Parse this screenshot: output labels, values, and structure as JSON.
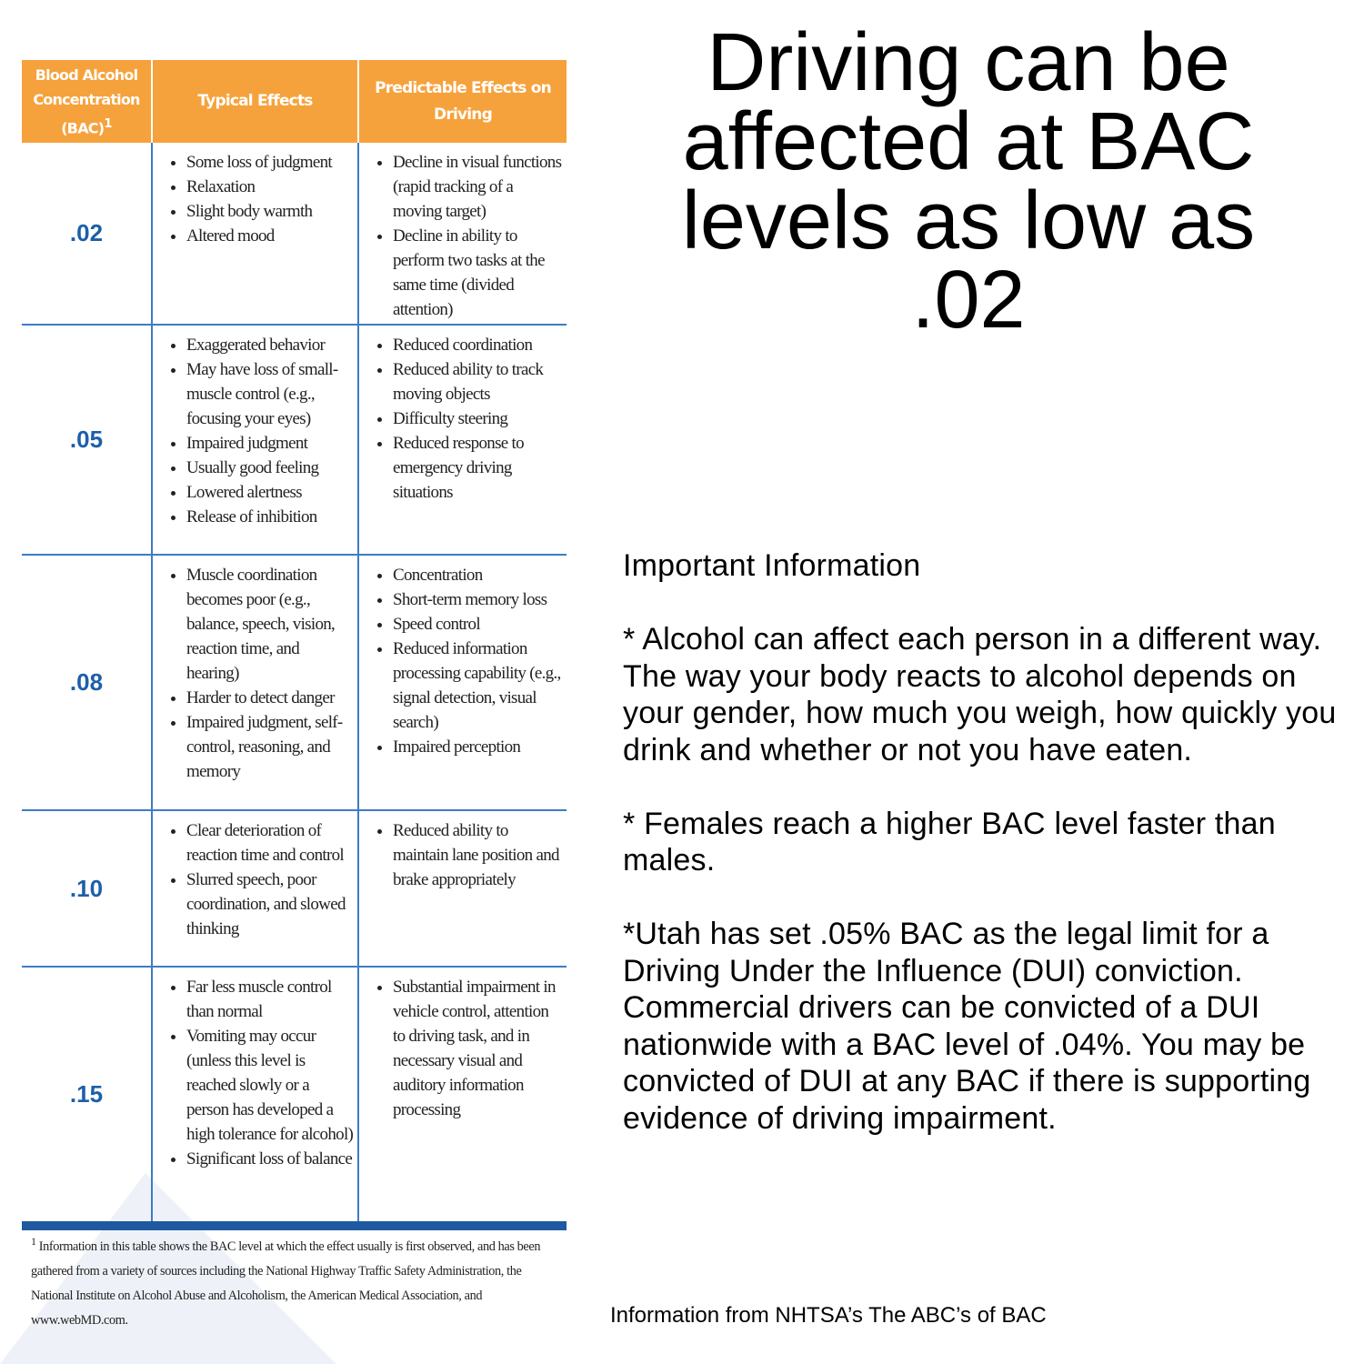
{
  "table": {
    "header": {
      "bac": "Blood Alcohol Concentration (BAC)",
      "bac_note_mark": "1",
      "typical": "Typical Effects",
      "driving": "Predictable Effects on Driving"
    },
    "rows": [
      {
        "bac": ".02",
        "typical": [
          "Some loss of judgment",
          "Relaxation",
          "Slight body warmth",
          "Altered mood"
        ],
        "driving": [
          "Decline in visual functions (rapid tracking of a moving target)",
          "Decline in ability to perform two tasks at the same time (divided attention)"
        ]
      },
      {
        "bac": ".05",
        "typical": [
          "Exaggerated behavior",
          "May have loss of small-muscle control (e.g., focusing your eyes)",
          "Impaired judgment",
          "Usually good feeling",
          "Lowered alertness",
          "Release of inhibition"
        ],
        "driving": [
          "Reduced coordination",
          "Reduced ability to track moving objects",
          "Difficulty steering",
          "Reduced response to emergency driving situations"
        ]
      },
      {
        "bac": ".08",
        "typical": [
          "Muscle coordination becomes poor (e.g., balance, speech, vision, reaction time, and hearing)",
          "Harder to detect danger",
          "Impaired judgment, self-control, reasoning, and memory"
        ],
        "driving": [
          "Concentration",
          "Short-term memory loss",
          "Speed control",
          "Reduced information processing capability (e.g., signal detection, visual search)",
          "Impaired perception"
        ]
      },
      {
        "bac": ".10",
        "typical": [
          "Clear deterioration of reaction time and control",
          "Slurred speech, poor coordination, and slowed thinking"
        ],
        "driving": [
          "Reduced ability to maintain lane position and brake appropriately"
        ]
      },
      {
        "bac": ".15",
        "typical": [
          "Far less muscle control than normal",
          "Vomiting may occur (unless this level is reached slowly or a person has developed a high tolerance for alcohol)",
          "Significant loss of balance"
        ],
        "driving": [
          "Substantial impairment in vehicle control, attention to driving task, and in necessary visual and auditory information processing"
        ]
      }
    ],
    "footnote": {
      "mark": "1",
      "text": "Information in this table shows the BAC level at which the effect usually is first observed, and has been gathered from a variety of sources including the National Highway Traffic Safety Administration, the National Institute on Alcohol Abuse and Alcoholism, the American Medical Association, and www.webMD.com."
    }
  },
  "title": "Driving can be affected at BAC levels as low as .02",
  "info": {
    "heading": "Important Information",
    "paragraphs": [
      "* Alcohol can affect each person in a different way. The way your body reacts to alcohol depends on your gender, how much you weigh, how quickly you drink and whether or not you have eaten.",
      "* Females reach a higher BAC level faster than males.",
      "*Utah has set .05% BAC as the legal limit for a Driving Under the Influence (DUI) conviction. Commercial drivers can be convicted of a DUI nationwide with a BAC level of .04%. You may be convicted of DUI at any BAC if there is supporting evidence of driving impairment."
    ]
  },
  "source": "Information from NHTSA’s The ABC’s of BAC"
}
